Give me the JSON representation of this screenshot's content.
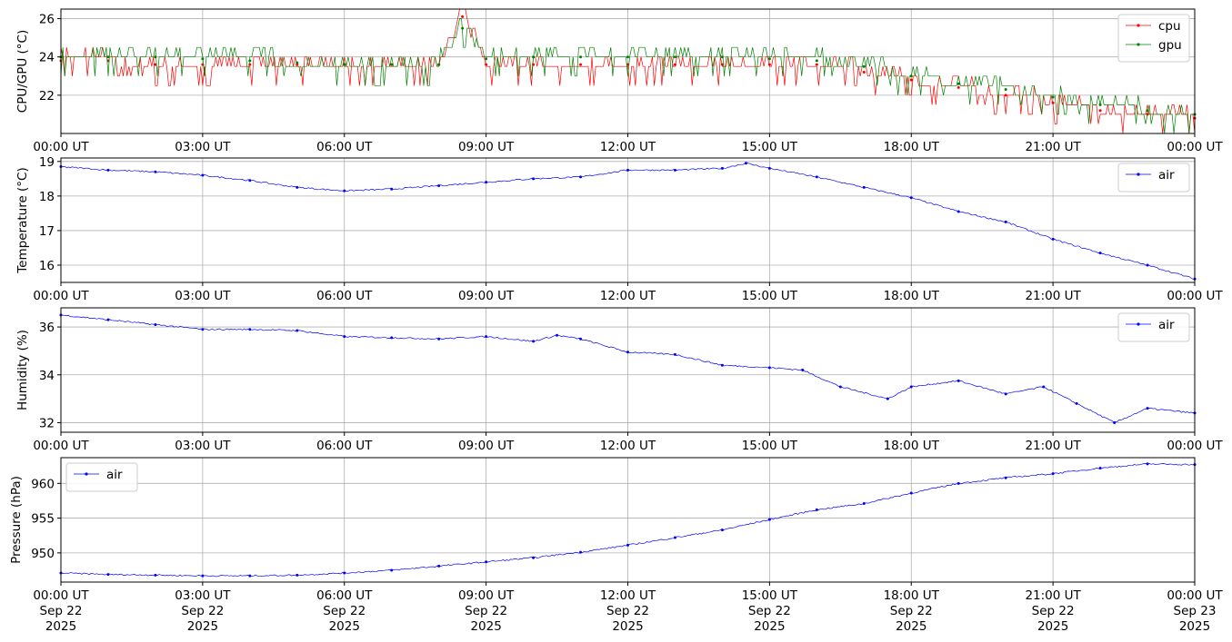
{
  "chart_data": [
    {
      "type": "line",
      "ylabel": "CPU/GPU (°C)",
      "xlim": [
        "00:00 UT",
        "00:00 UT"
      ],
      "ylim": [
        20.0,
        26.5
      ],
      "yticks": [
        "22",
        "24",
        "26"
      ],
      "xticks": [
        "00:00 UT",
        "03:00 UT",
        "06:00 UT",
        "09:00 UT",
        "12:00 UT",
        "15:00 UT",
        "18:00 UT",
        "21:00 UT",
        "00:00 UT"
      ],
      "grid": true,
      "legend": "top-right",
      "series": [
        {
          "name": "cpu",
          "color": "#ff0000",
          "x": [
            0,
            1,
            2,
            3,
            4,
            5,
            6,
            7,
            8,
            8.5,
            9,
            10,
            11,
            12,
            13,
            14,
            15,
            16,
            17,
            18,
            19,
            20,
            21,
            22,
            23,
            24
          ],
          "y": [
            23.8,
            23.8,
            23.6,
            23.6,
            23.6,
            23.6,
            23.6,
            23.6,
            23.6,
            26.1,
            23.6,
            23.6,
            23.6,
            23.6,
            23.6,
            23.6,
            23.6,
            23.6,
            23.2,
            22.8,
            22.4,
            22.0,
            21.6,
            21.2,
            21.0,
            20.8
          ]
        },
        {
          "name": "gpu",
          "color": "#008000",
          "x": [
            0,
            1,
            2,
            3,
            4,
            5,
            6,
            7,
            8,
            8.5,
            9,
            10,
            11,
            12,
            13,
            14,
            15,
            16,
            17,
            18,
            19,
            20,
            21,
            22,
            23,
            24
          ],
          "y": [
            24.0,
            24.0,
            24.0,
            23.9,
            23.8,
            23.7,
            23.6,
            23.6,
            23.6,
            25.5,
            23.9,
            24.0,
            24.0,
            24.0,
            24.0,
            24.0,
            23.9,
            23.8,
            23.5,
            23.0,
            22.6,
            22.3,
            21.9,
            21.5,
            21.2,
            21.0
          ]
        }
      ]
    },
    {
      "type": "line",
      "ylabel": "Temperature (°C)",
      "ylim": [
        15.5,
        19.1
      ],
      "yticks": [
        "16",
        "17",
        "18",
        "19"
      ],
      "xticks": [
        "00:00 UT",
        "03:00 UT",
        "06:00 UT",
        "09:00 UT",
        "12:00 UT",
        "15:00 UT",
        "18:00 UT",
        "21:00 UT",
        "00:00 UT"
      ],
      "grid": true,
      "legend": "top-right",
      "series": [
        {
          "name": "air",
          "color": "#0000ff",
          "x": [
            0,
            1,
            2,
            3,
            4,
            5,
            6,
            7,
            8,
            9,
            10,
            11,
            12,
            13,
            14,
            14.5,
            15,
            16,
            17,
            18,
            19,
            20,
            21,
            22,
            23,
            24
          ],
          "y": [
            18.85,
            18.75,
            18.7,
            18.6,
            18.45,
            18.25,
            18.15,
            18.2,
            18.3,
            18.4,
            18.5,
            18.55,
            18.75,
            18.75,
            18.8,
            18.95,
            18.8,
            18.55,
            18.25,
            17.95,
            17.55,
            17.25,
            16.75,
            16.35,
            16.0,
            15.6
          ]
        }
      ]
    },
    {
      "type": "line",
      "ylabel": "Humidity (%)",
      "ylim": [
        31.6,
        36.8
      ],
      "yticks": [
        "32",
        "34",
        "36"
      ],
      "xticks": [
        "00:00 UT",
        "03:00 UT",
        "06:00 UT",
        "09:00 UT",
        "12:00 UT",
        "15:00 UT",
        "18:00 UT",
        "21:00 UT",
        "00:00 UT"
      ],
      "grid": true,
      "legend": "top-right",
      "series": [
        {
          "name": "air",
          "color": "#0000ff",
          "x": [
            0,
            1,
            2,
            3,
            4,
            5,
            6,
            7,
            8,
            9,
            10,
            10.5,
            11,
            12,
            13,
            14,
            15,
            15.7,
            16.5,
            17.5,
            18,
            19,
            20,
            20.8,
            21.5,
            22.3,
            23,
            24
          ],
          "y": [
            36.5,
            36.3,
            36.1,
            35.9,
            35.9,
            35.85,
            35.6,
            35.55,
            35.5,
            35.6,
            35.4,
            35.65,
            35.5,
            34.95,
            34.85,
            34.4,
            34.3,
            34.2,
            33.5,
            33.0,
            33.5,
            33.75,
            33.2,
            33.5,
            32.8,
            32.0,
            32.6,
            32.4
          ]
        }
      ]
    },
    {
      "type": "line",
      "ylabel": "Pressure (hPa)",
      "ylim": [
        945.8,
        963.7
      ],
      "yticks": [
        "950",
        "955",
        "960"
      ],
      "xticks": [
        "00:00 UT\nSep 22\n2025",
        "03:00 UT\nSep 22\n2025",
        "06:00 UT\nSep 22\n2025",
        "09:00 UT\nSep 22\n2025",
        "12:00 UT\nSep 22\n2025",
        "15:00 UT\nSep 22\n2025",
        "18:00 UT\nSep 22\n2025",
        "21:00 UT\nSep 22\n2025",
        "00:00 UT\nSep 23\n2025"
      ],
      "grid": true,
      "legend": "top-left",
      "series": [
        {
          "name": "air",
          "color": "#0000ff",
          "x": [
            0,
            1,
            2,
            3,
            4,
            5,
            6,
            7,
            8,
            9,
            10,
            11,
            12,
            13,
            14,
            15,
            16,
            17,
            18,
            19,
            20,
            21,
            22,
            23,
            24
          ],
          "y": [
            947.1,
            946.9,
            946.8,
            946.7,
            946.7,
            946.8,
            947.1,
            947.5,
            948.1,
            948.7,
            949.3,
            950.1,
            951.1,
            952.2,
            953.3,
            954.8,
            956.2,
            957.1,
            958.6,
            960.0,
            960.8,
            961.4,
            962.2,
            962.8,
            962.7
          ]
        }
      ]
    }
  ]
}
